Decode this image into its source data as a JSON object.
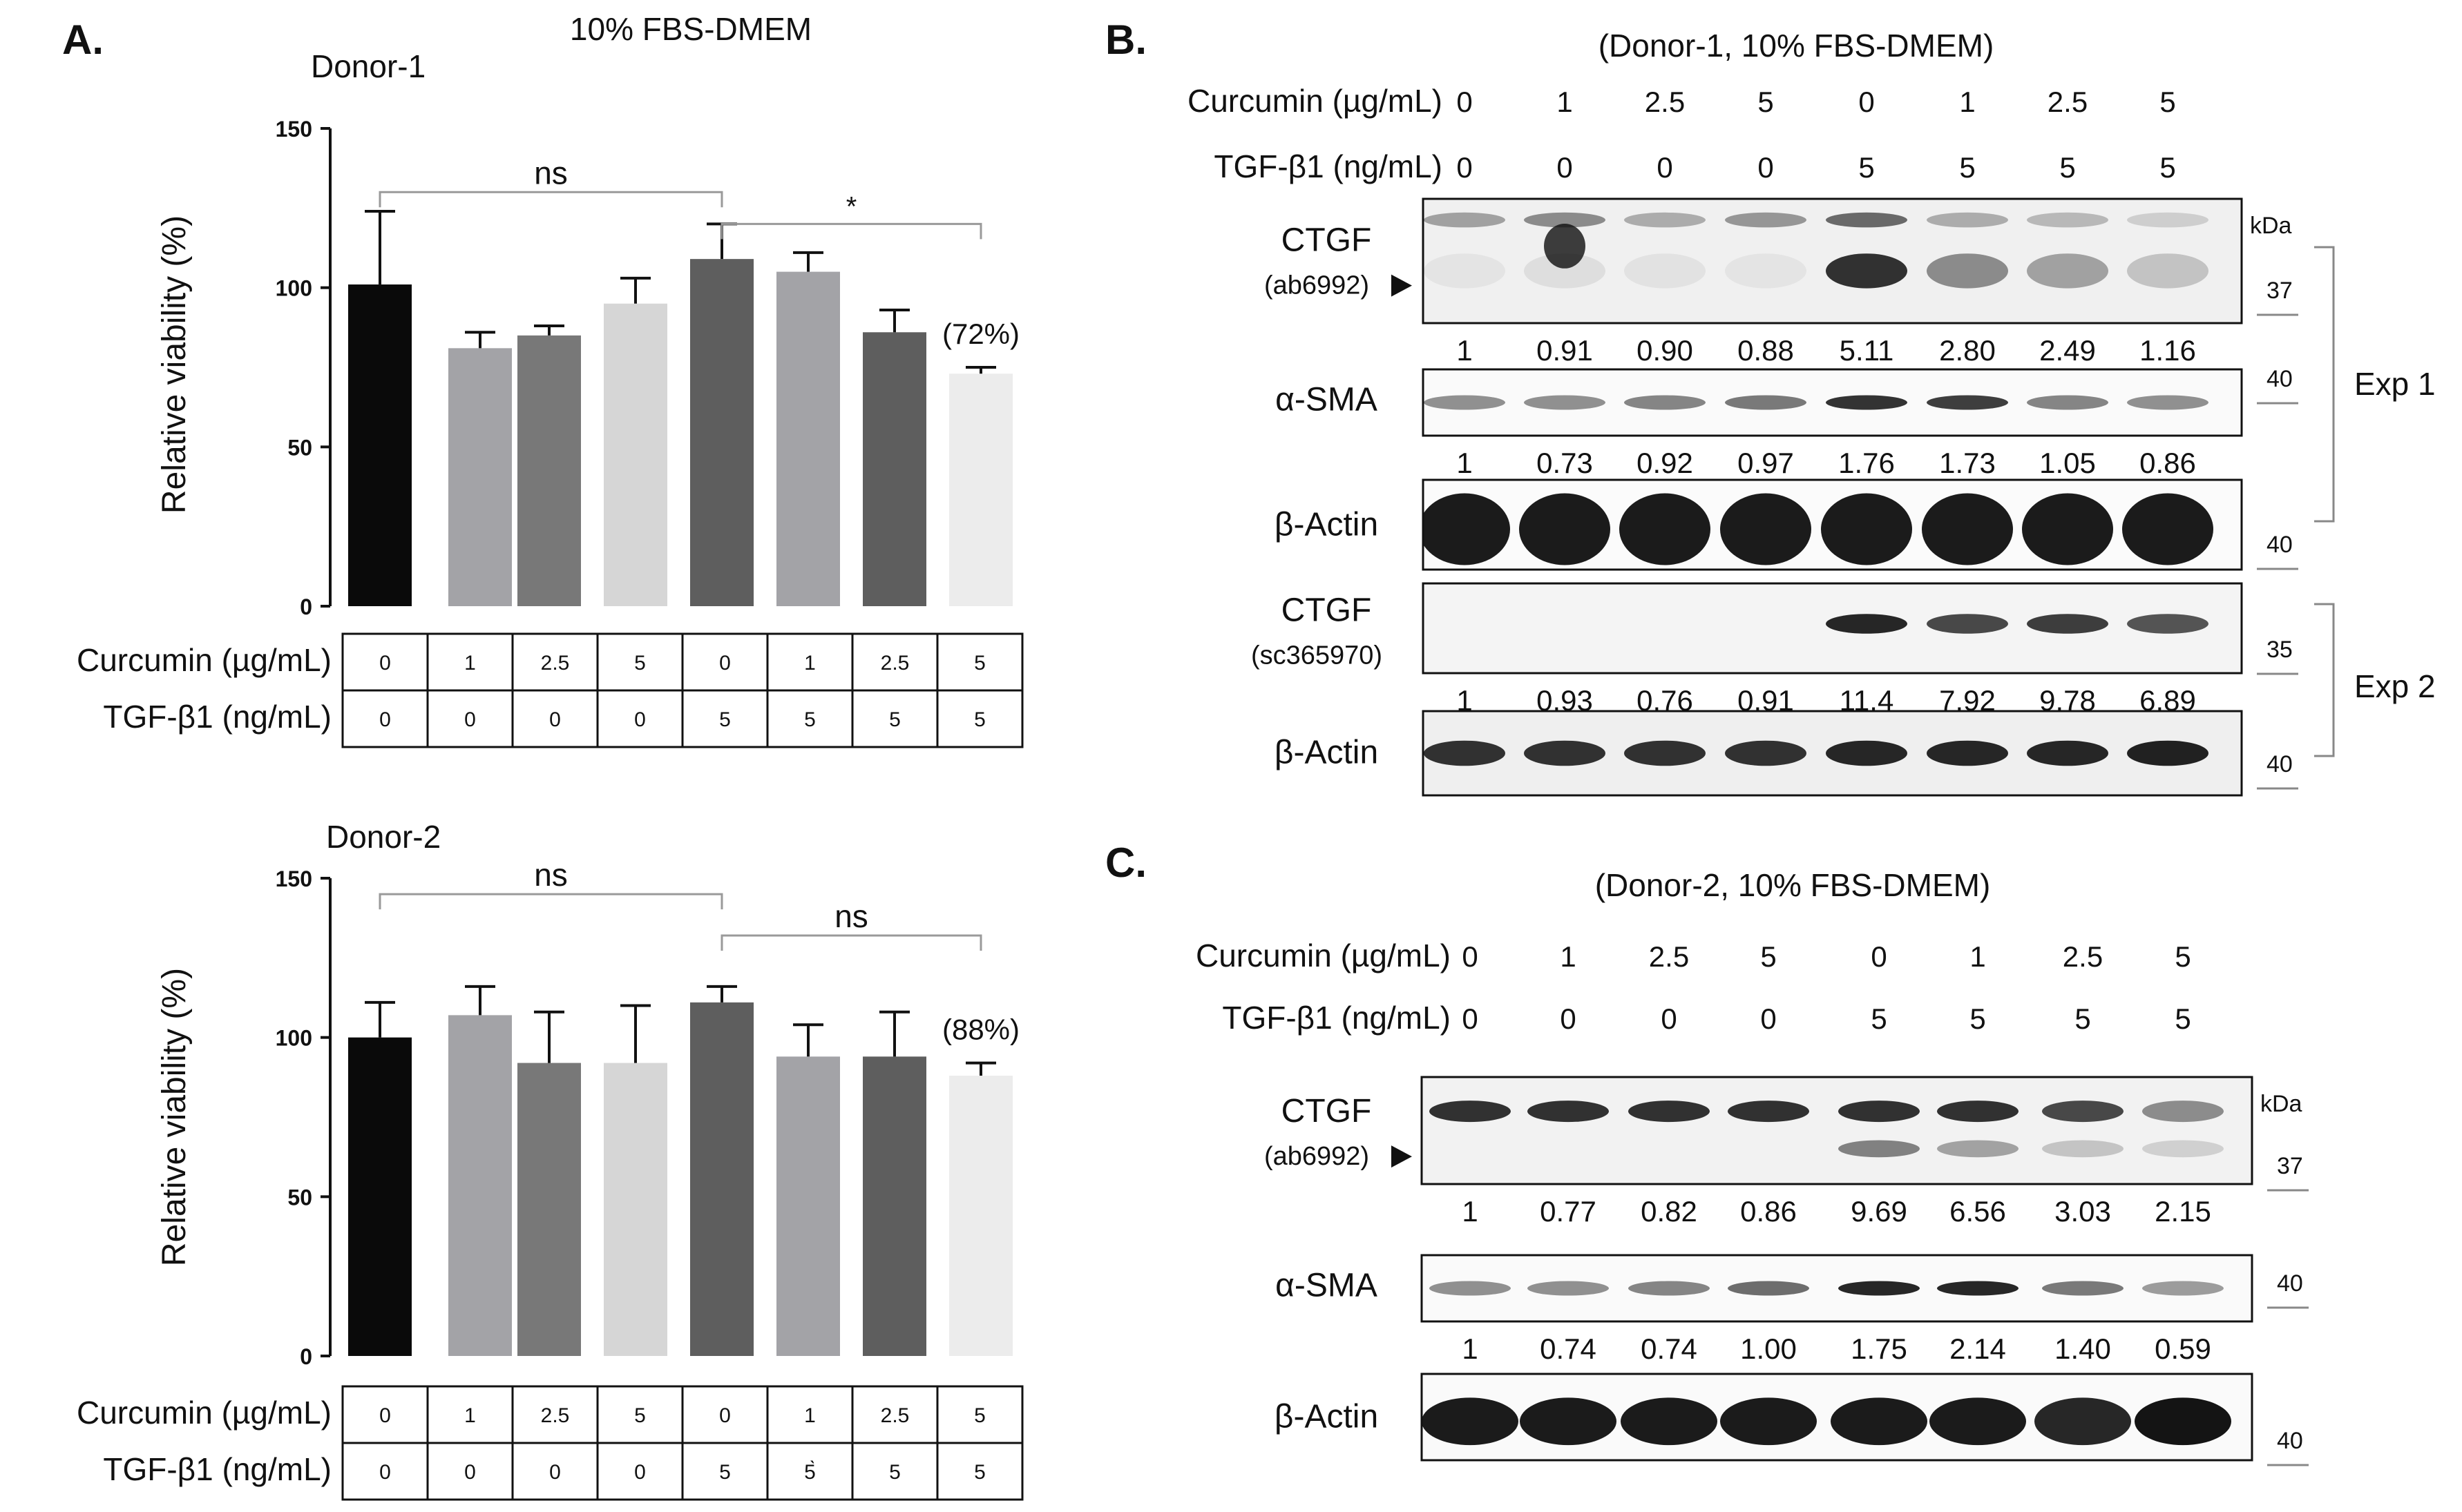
{
  "panel_labels": {
    "a": "A.",
    "b": "B.",
    "c": "C."
  },
  "panel_a": {
    "title": "10% FBS-DMEM",
    "treatment_labels": {
      "curcumin": "Curcumin (µg/mL)",
      "tgf": "TGF-β1 (ng/mL)"
    },
    "curcumin": [
      "0",
      "1",
      "2.5",
      "5",
      "0",
      "1",
      "2.5",
      "5"
    ],
    "tgf_donor1": [
      "0",
      "0",
      "0",
      "0",
      "5",
      "5",
      "5",
      "5"
    ],
    "tgf_donor2": [
      "0",
      "0",
      "0",
      "0",
      "5",
      "5̀",
      "5",
      "5"
    ],
    "bar_colors": [
      "#0a0a0a",
      "#a3a3a7",
      "#787878",
      "#d6d6d6",
      "#5e5e5e",
      "#a3a3a7",
      "#5e5e5e",
      "#ececec"
    ]
  },
  "chart_data": [
    {
      "type": "bar",
      "title": "Donor-1",
      "ylabel": "Relative viability (%)",
      "ylim": [
        0,
        150
      ],
      "yticks": [
        0,
        50,
        100,
        150
      ],
      "categories": [
        "1",
        "2",
        "3",
        "4",
        "5",
        "6",
        "7",
        "8"
      ],
      "values": [
        101,
        81,
        85,
        95,
        109,
        105,
        86,
        73
      ],
      "errors": [
        23,
        5,
        3,
        8,
        11,
        6,
        7,
        2
      ],
      "annotations": [
        {
          "text": "ns",
          "from": 1,
          "to": 5,
          "level": 130
        },
        {
          "text": "*",
          "from": 5,
          "to": 8,
          "level": 120
        },
        {
          "text": "(72%)",
          "bar": 8
        }
      ],
      "grid": false
    },
    {
      "type": "bar",
      "title": "Donor-2",
      "ylabel": "Relative viability (%)",
      "ylim": [
        0,
        150
      ],
      "yticks": [
        0,
        50,
        100,
        150
      ],
      "categories": [
        "1",
        "2",
        "3",
        "4",
        "5",
        "6",
        "7",
        "8"
      ],
      "values": [
        100,
        107,
        92,
        92,
        111,
        94,
        94,
        88
      ],
      "errors": [
        11,
        9,
        16,
        18,
        5,
        10,
        14,
        4
      ],
      "annotations": [
        {
          "text": "ns",
          "from": 1,
          "to": 5,
          "level": 145
        },
        {
          "text": "ns",
          "from": 5,
          "to": 8,
          "level": 132
        },
        {
          "text": "(88%)",
          "bar": 8
        }
      ],
      "grid": false
    }
  ],
  "panel_b": {
    "title": "(Donor-1, 10% FBS-DMEM)",
    "curcumin_label": "Curcumin (µg/mL)",
    "tgf_label": "TGF-β1 (ng/mL)",
    "curcumin": [
      "0",
      "1",
      "2.5",
      "5",
      "0",
      "1",
      "2.5",
      "5"
    ],
    "tgf": [
      "0",
      "0",
      "0",
      "0",
      "5",
      "5",
      "5",
      "5"
    ],
    "blots": [
      {
        "name": "CTGF",
        "antibody": "(ab6992)",
        "kda": "37",
        "kda_header": "kDa",
        "ratios": [
          "1",
          "0.91",
          "0.90",
          "0.88",
          "5.11",
          "2.80",
          "2.49",
          "1.16"
        ]
      },
      {
        "name": "α-SMA",
        "antibody": "",
        "kda": "40",
        "ratios": [
          "1",
          "0.73",
          "0.92",
          "0.97",
          "1.76",
          "1.73",
          "1.05",
          "0.86"
        ]
      },
      {
        "name": "β-Actin",
        "antibody": "",
        "kda": "40",
        "ratios": []
      },
      {
        "name": "CTGF",
        "antibody": "(sc365970)",
        "kda": "35",
        "ratios": [
          "1",
          "0.93",
          "0.76",
          "0.91",
          "11.4",
          "7.92",
          "9.78",
          "6.89"
        ]
      },
      {
        "name": "β-Actin",
        "antibody": "",
        "kda": "40",
        "ratios": []
      }
    ],
    "exp1": "Exp 1",
    "exp2": "Exp 2"
  },
  "panel_c": {
    "title": "(Donor-2, 10% FBS-DMEM)",
    "curcumin_label": "Curcumin (µg/mL)",
    "tgf_label": "TGF-β1 (ng/mL)",
    "curcumin": [
      "0",
      "1",
      "2.5",
      "5",
      "0",
      "1",
      "2.5",
      "5"
    ],
    "tgf": [
      "0",
      "0",
      "0",
      "0",
      "5",
      "5",
      "5",
      "5"
    ],
    "blots": [
      {
        "name": "CTGF",
        "antibody": "(ab6992)",
        "kda": "37",
        "kda_header": "kDa",
        "ratios": [
          "1",
          "0.77",
          "0.82",
          "0.86",
          "9.69",
          "6.56",
          "3.03",
          "2.15"
        ]
      },
      {
        "name": "α-SMA",
        "antibody": "",
        "kda": "40",
        "ratios": [
          "1",
          "0.74",
          "0.74",
          "1.00",
          "1.75",
          "2.14",
          "1.40",
          "0.59"
        ]
      },
      {
        "name": "β-Actin",
        "antibody": "",
        "kda": "40",
        "ratios": []
      }
    ]
  }
}
